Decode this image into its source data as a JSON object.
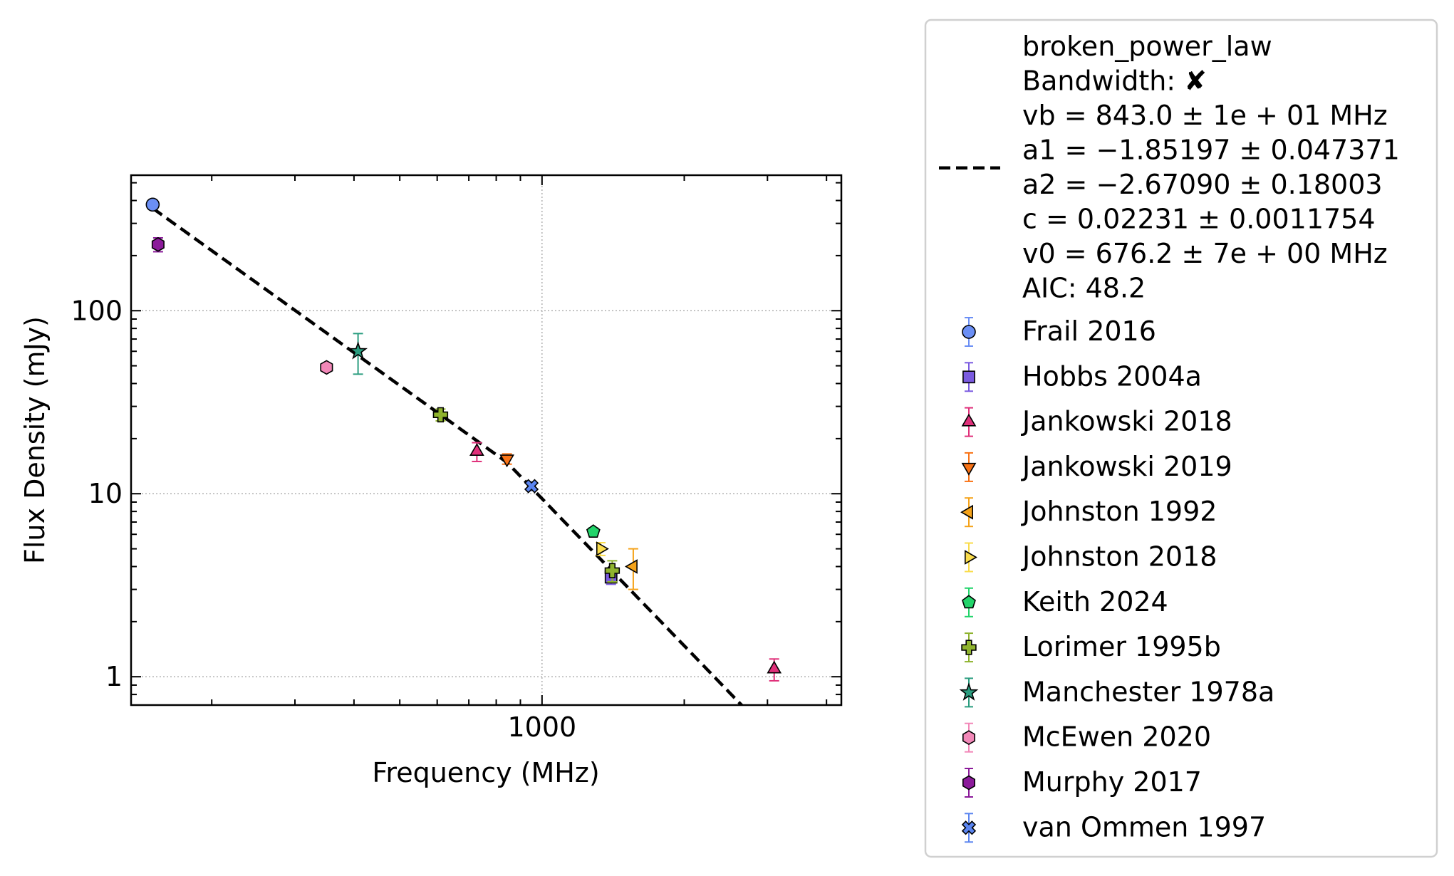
{
  "chart_data": {
    "type": "scatter",
    "title": "",
    "xlabel": "Frequency (MHz)",
    "ylabel": "Flux Density (mJy)",
    "xscale": "log",
    "yscale": "log",
    "xlim": [
      135,
      4300
    ],
    "ylim": [
      0.7,
      550
    ],
    "x_ticks": [
      {
        "value": 1000,
        "label": "1000"
      }
    ],
    "y_ticks": [
      {
        "value": 1,
        "label": "1"
      },
      {
        "value": 10,
        "label": "10"
      },
      {
        "value": 100,
        "label": "100"
      }
    ],
    "grid": true,
    "legend_position": "outside-right",
    "fit": {
      "label_lines": [
        "broken_power_law",
        "Bandwidth: ✘",
        "vb = 843.0 ± 1e + 01 MHz",
        "a1 = −1.85197 ± 0.047371",
        "a2 = −2.67090 ± 0.18003",
        "c = 0.02231 ± 0.0011754",
        "v0 = 676.2 ± 7e + 00 MHz",
        "AIC: 48.2"
      ],
      "color": "#000000",
      "dash": "dashed",
      "vb": 843.0,
      "a1": -1.85197,
      "a2": -2.6709,
      "c": 0.02231,
      "v0": 676.2,
      "x_range": [
        150,
        4300
      ]
    },
    "series": [
      {
        "name": "Frail 2016",
        "marker": "circle",
        "color": "#6b8ff5",
        "points": [
          {
            "x": 150,
            "y": 380,
            "yerr": 20
          }
        ]
      },
      {
        "name": "Hobbs 2004a",
        "marker": "square",
        "color": "#7b5be0",
        "points": [
          {
            "x": 1400,
            "y": 3.5,
            "yerr": 0.3
          }
        ]
      },
      {
        "name": "Jankowski 2018",
        "marker": "triangle-up",
        "color": "#e0307a",
        "points": [
          {
            "x": 728,
            "y": 17,
            "yerr": 2
          },
          {
            "x": 3100,
            "y": 1.1,
            "yerr": 0.15
          }
        ]
      },
      {
        "name": "Jankowski 2019",
        "marker": "triangle-down",
        "color": "#f97316",
        "points": [
          {
            "x": 843,
            "y": 15.5,
            "yerr": 1
          }
        ]
      },
      {
        "name": "Johnston 1992",
        "marker": "triangle-left",
        "color": "#f5a31a",
        "points": [
          {
            "x": 1560,
            "y": 4,
            "yerr": 1
          }
        ]
      },
      {
        "name": "Johnston 2018",
        "marker": "triangle-right",
        "color": "#fadc4b",
        "points": [
          {
            "x": 1330,
            "y": 5,
            "yerr": 0.4
          }
        ]
      },
      {
        "name": "Keith 2024",
        "marker": "pentagon",
        "color": "#22d46a",
        "points": [
          {
            "x": 1284,
            "y": 6.2,
            "yerr": 0.3
          }
        ]
      },
      {
        "name": "Lorimer 1995b",
        "marker": "plus",
        "color": "#8fb32e",
        "points": [
          {
            "x": 610,
            "y": 27,
            "yerr": 2
          },
          {
            "x": 1408,
            "y": 3.8,
            "yerr": 0.5
          }
        ]
      },
      {
        "name": "Manchester 1978a",
        "marker": "star",
        "color": "#2a9d7f",
        "points": [
          {
            "x": 408,
            "y": 60,
            "yerr": 15
          }
        ]
      },
      {
        "name": "McEwen 2020",
        "marker": "hexagon",
        "color": "#f288b8",
        "points": [
          {
            "x": 350,
            "y": 49,
            "yerr": 2
          }
        ]
      },
      {
        "name": "Murphy 2017",
        "marker": "hexagon",
        "color": "#8b1a9a",
        "points": [
          {
            "x": 154,
            "y": 230,
            "yerr": 20
          }
        ]
      },
      {
        "name": "van Ommen 1997",
        "marker": "x",
        "color": "#5b85f0",
        "points": [
          {
            "x": 950,
            "y": 11,
            "yerr": 0.6
          }
        ]
      }
    ]
  }
}
